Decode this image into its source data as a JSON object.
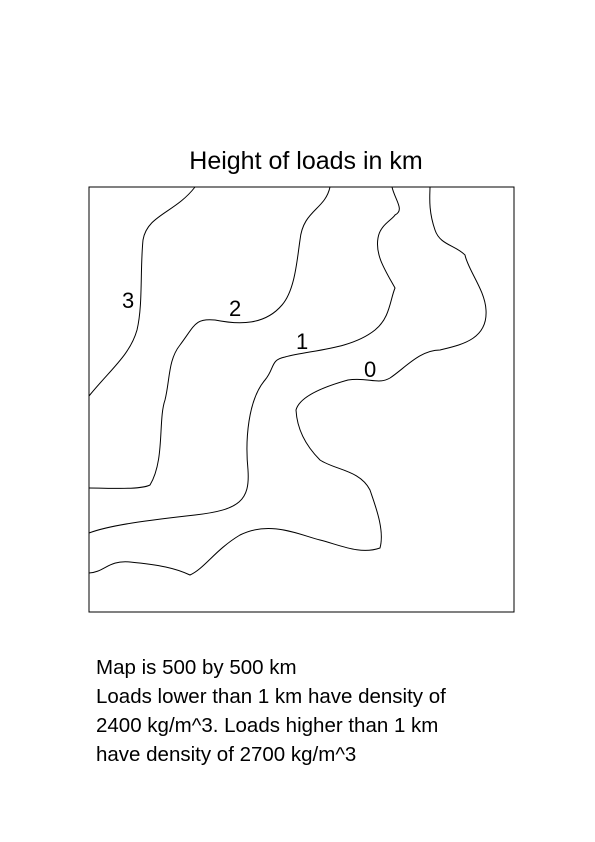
{
  "title": "Height of loads in km",
  "contours": [
    {
      "id": "contour-3",
      "label": "3"
    },
    {
      "id": "contour-2",
      "label": "2"
    },
    {
      "id": "contour-1",
      "label": "1"
    },
    {
      "id": "contour-0",
      "label": "0"
    }
  ],
  "notes": {
    "line1": "Map is 500 by 500 km",
    "line2": "Loads lower than 1 km have density of",
    "line3": "2400 kg/m^3. Loads higher than 1 km",
    "line4": "have density of 2700 kg/m^3"
  }
}
